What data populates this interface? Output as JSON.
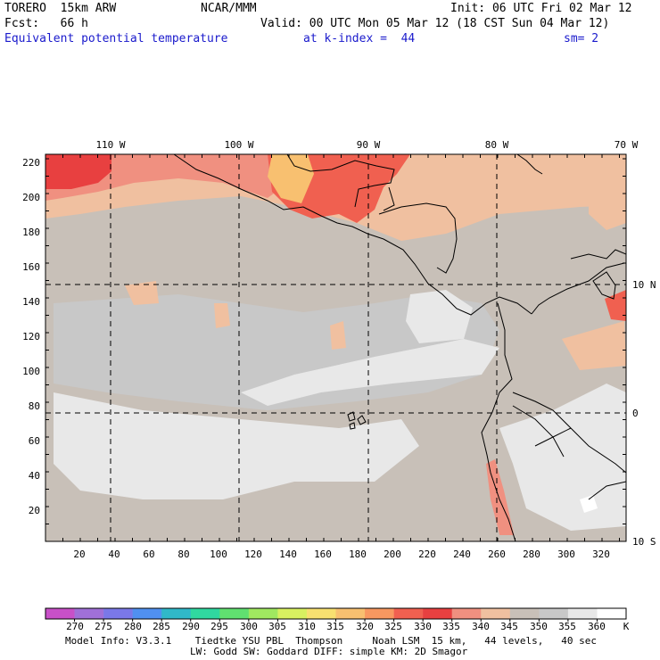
{
  "header": {
    "model": "TORERO  15km ARW",
    "org": "NCAR/MMM",
    "init": "Init: 06 UTC Fri 02 Mar 12",
    "fcst": "Fcst:   66 h",
    "valid": "Valid: 00 UTC Mon 05 Mar 12 (18 CST Sun 04 Mar 12)",
    "field": "Equivalent potential temperature",
    "level": "at k-index =  44",
    "smooth": "sm= 2"
  },
  "map": {
    "lon_labels": [
      "110 W",
      "100 W",
      "90 W",
      "80 W",
      "70 W"
    ],
    "lat_labels": [
      "10 N",
      "0",
      "10 S"
    ],
    "x_ticks": [
      "20",
      "40",
      "60",
      "80",
      "100",
      "120",
      "140",
      "160",
      "180",
      "200",
      "220",
      "240",
      "260",
      "280",
      "300",
      "320"
    ],
    "y_ticks": [
      "20",
      "40",
      "60",
      "80",
      "100",
      "120",
      "140",
      "160",
      "180",
      "200",
      "220"
    ]
  },
  "colorbar": {
    "labels": [
      "270",
      "275",
      "280",
      "285",
      "290",
      "295",
      "300",
      "305",
      "310",
      "315",
      "320",
      "325",
      "330",
      "335",
      "340",
      "345",
      "350",
      "355",
      "360"
    ],
    "unit": "K",
    "colors": [
      "#c850c8",
      "#a070d8",
      "#7a78e8",
      "#5090f0",
      "#30b8c8",
      "#30d8a0",
      "#60e070",
      "#a0e860",
      "#d8f060",
      "#f8e070",
      "#f8c070",
      "#f89860",
      "#f06050",
      "#e84040",
      "#f09080",
      "#f0c0a0",
      "#c8c0b8",
      "#c8c8c8",
      "#e8e8e8",
      "#ffffff"
    ]
  },
  "footer": {
    "line1": "Model Info: V3.3.1    Tiedtke YSU PBL  Thompson     Noah LSM  15 km,   44 levels,   40 sec",
    "line2": "LW: Godd SW: Goddard DIFF: simple KM: 2D Smagor"
  }
}
